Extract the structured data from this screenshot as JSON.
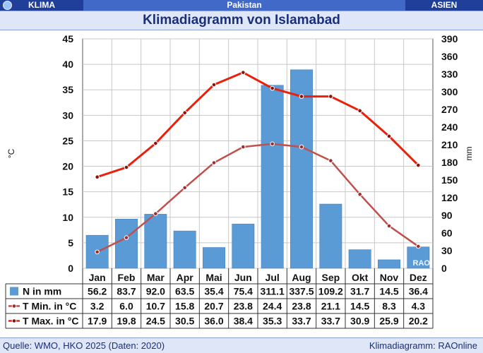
{
  "header": {
    "left": "KLIMA",
    "center": "Pakistan",
    "right": "ASIEN"
  },
  "title": "Klimadiagramm von Islamabad",
  "footer": {
    "source": "Quelle: WMO, HKO 2025 (Daten: 2020)",
    "credit": "Klimadiagramm: RAOnline"
  },
  "watermark": "RAO",
  "chart_data": {
    "type": "bar",
    "categories": [
      "Jan",
      "Feb",
      "Mar",
      "Apr",
      "Mai",
      "Jun",
      "Jul",
      "Aug",
      "Sep",
      "Okt",
      "Nov",
      "Dez"
    ],
    "ylabel_left": "°C",
    "ylabel_right": "mm",
    "ylim_left": [
      0,
      45
    ],
    "ylim_right": [
      0,
      390
    ],
    "yticks_left": [
      0,
      5,
      10,
      15,
      20,
      25,
      30,
      35,
      40,
      45
    ],
    "yticks_right": [
      0,
      30,
      60,
      90,
      120,
      150,
      180,
      210,
      240,
      270,
      300,
      330,
      360,
      390
    ],
    "grid": true,
    "series": [
      {
        "name": "N in mm",
        "kind": "bar",
        "axis": "right",
        "color": "#5b9bd5",
        "values": [
          56.2,
          83.7,
          92.0,
          63.5,
          35.4,
          75.4,
          311.1,
          337.5,
          109.2,
          31.7,
          14.5,
          36.4
        ]
      },
      {
        "name": "T Min. in °C",
        "kind": "line",
        "axis": "left",
        "color": "#c0504d",
        "values": [
          3.2,
          6.0,
          10.7,
          15.8,
          20.7,
          23.8,
          24.4,
          23.8,
          21.1,
          14.5,
          8.3,
          4.3
        ]
      },
      {
        "name": "T Max. in °C",
        "kind": "line",
        "axis": "left",
        "color": "#e8200c",
        "values": [
          17.9,
          19.8,
          24.5,
          30.5,
          36.0,
          38.4,
          35.3,
          33.7,
          33.7,
          30.9,
          25.9,
          20.2
        ]
      }
    ],
    "table": {
      "rows": [
        {
          "label": "N in mm",
          "values": [
            "56.2",
            "83.7",
            "92.0",
            "63.5",
            "35.4",
            "75.4",
            "311.1",
            "337.5",
            "109.2",
            "31.7",
            "14.5",
            "36.4"
          ]
        },
        {
          "label": "T Min. in °C",
          "values": [
            "3.2",
            "6.0",
            "10.7",
            "15.8",
            "20.7",
            "23.8",
            "24.4",
            "23.8",
            "21.1",
            "14.5",
            "8.3",
            "4.3"
          ]
        },
        {
          "label": "T Max. in °C",
          "values": [
            "17.9",
            "19.8",
            "24.5",
            "30.5",
            "36.0",
            "38.4",
            "35.3",
            "33.7",
            "33.7",
            "30.9",
            "25.9",
            "20.2"
          ]
        }
      ]
    }
  }
}
